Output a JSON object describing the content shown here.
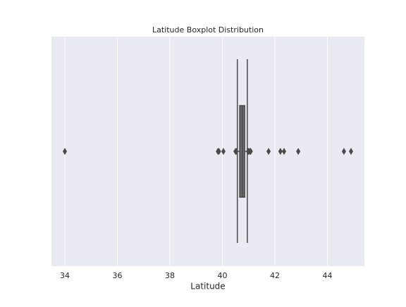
{
  "chart_data": {
    "type": "boxplot",
    "title": "Latitude Boxplot Distribution",
    "xlabel": "Latitude",
    "xlim": [
      33.49,
      45.41
    ],
    "xticks": [
      34,
      36,
      38,
      40,
      42,
      44
    ],
    "grid": true,
    "whisker_low": 40.57,
    "q1": 40.66,
    "median": 40.76,
    "q3": 40.85,
    "whisker_high": 40.95,
    "outliers": [
      34.0,
      39.83,
      39.87,
      40.04,
      40.5,
      40.53,
      40.98,
      41.0,
      41.05,
      41.08,
      41.76,
      42.21,
      42.35,
      42.89,
      44.63,
      44.9
    ],
    "color": "#6b6b6b",
    "line_color": "#4a4a4a",
    "background": "#eaeaf2"
  }
}
